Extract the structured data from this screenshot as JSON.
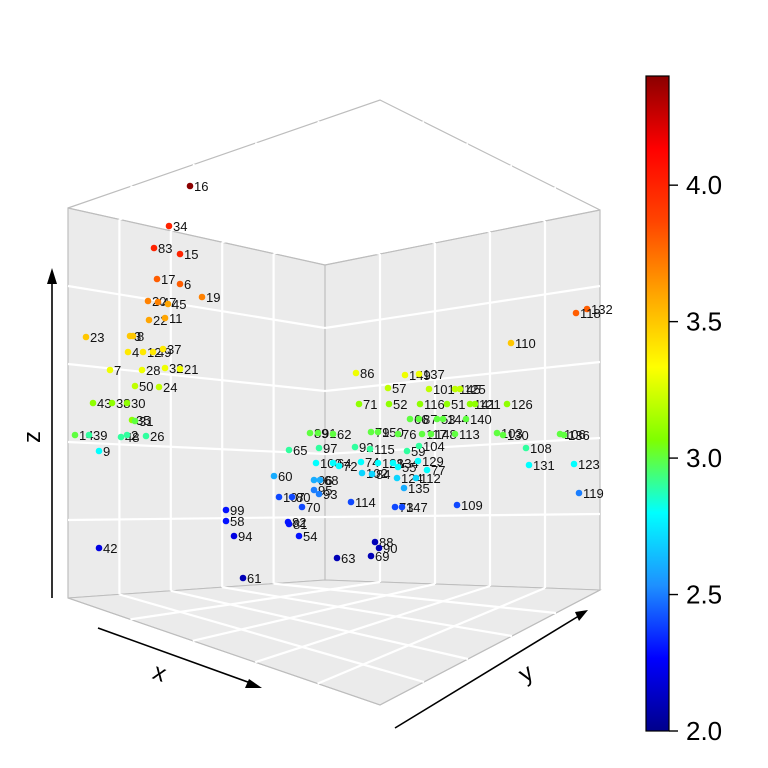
{
  "chart_data": {
    "type": "scatter3d",
    "title": "",
    "axes": {
      "x": "x",
      "y": "y",
      "z": "z"
    },
    "colorbar": {
      "range": [
        2.0,
        4.4
      ],
      "ticks": [
        {
          "value": 2.0,
          "label": "2.0"
        },
        {
          "value": 2.5,
          "label": "2.5"
        },
        {
          "value": 3.0,
          "label": "3.0"
        },
        {
          "value": 3.5,
          "label": "3.5"
        },
        {
          "value": 4.0,
          "label": "4.0"
        }
      ],
      "colors": [
        "#00008b",
        "#0000ff",
        "#1e90ff",
        "#00ffff",
        "#7fff00",
        "#ffff00",
        "#ffa500",
        "#ff4500",
        "#ff0000",
        "#8b0000"
      ]
    },
    "points": [
      {
        "label": "16",
        "value": 4.4
      },
      {
        "label": "34",
        "value": 4.0
      },
      {
        "label": "83",
        "value": 4.0
      },
      {
        "label": "15",
        "value": 4.0
      },
      {
        "label": "17",
        "value": 3.8
      },
      {
        "label": "6",
        "value": 3.8
      },
      {
        "label": "19",
        "value": 3.7
      },
      {
        "label": "20",
        "value": 3.7
      },
      {
        "label": "47",
        "value": 3.7
      },
      {
        "label": "45",
        "value": 3.6
      },
      {
        "label": "22",
        "value": 3.6
      },
      {
        "label": "11",
        "value": 3.6
      },
      {
        "label": "23",
        "value": 3.5
      },
      {
        "label": "3",
        "value": 3.5
      },
      {
        "label": "8",
        "value": 3.5
      },
      {
        "label": "4",
        "value": 3.4
      },
      {
        "label": "12",
        "value": 3.4
      },
      {
        "label": "49",
        "value": 3.4
      },
      {
        "label": "37",
        "value": 3.4
      },
      {
        "label": "7",
        "value": 3.3
      },
      {
        "label": "28",
        "value": 3.3
      },
      {
        "label": "32",
        "value": 3.3
      },
      {
        "label": "21",
        "value": 3.3
      },
      {
        "label": "50",
        "value": 3.2
      },
      {
        "label": "24",
        "value": 3.2
      },
      {
        "label": "43",
        "value": 3.1
      },
      {
        "label": "38",
        "value": 3.1
      },
      {
        "label": "30",
        "value": 3.1
      },
      {
        "label": "35",
        "value": 3.1
      },
      {
        "label": "31",
        "value": 3.0
      },
      {
        "label": "14",
        "value": 3.0
      },
      {
        "label": "39",
        "value": 2.9
      },
      {
        "label": "48",
        "value": 2.9
      },
      {
        "label": "2",
        "value": 2.9
      },
      {
        "label": "26",
        "value": 2.9
      },
      {
        "label": "9",
        "value": 2.8
      },
      {
        "label": "42",
        "value": 2.2
      },
      {
        "label": "61",
        "value": 2.1
      },
      {
        "label": "132",
        "value": 3.8
      },
      {
        "label": "118",
        "value": 3.8
      },
      {
        "label": "110",
        "value": 3.5
      },
      {
        "label": "86",
        "value": 3.3
      },
      {
        "label": "149",
        "value": 3.3
      },
      {
        "label": "137",
        "value": 3.3
      },
      {
        "label": "57",
        "value": 3.2
      },
      {
        "label": "101",
        "value": 3.2
      },
      {
        "label": "145",
        "value": 3.2
      },
      {
        "label": "125",
        "value": 3.2
      },
      {
        "label": "71",
        "value": 3.1
      },
      {
        "label": "52",
        "value": 3.1
      },
      {
        "label": "116",
        "value": 3.1
      },
      {
        "label": "51",
        "value": 3.1
      },
      {
        "label": "141",
        "value": 3.1
      },
      {
        "label": "121",
        "value": 3.1
      },
      {
        "label": "126",
        "value": 3.1
      },
      {
        "label": "66",
        "value": 3.0
      },
      {
        "label": "87",
        "value": 3.0
      },
      {
        "label": "53",
        "value": 3.0
      },
      {
        "label": "144",
        "value": 3.0
      },
      {
        "label": "140",
        "value": 3.0
      },
      {
        "label": "89",
        "value": 3.0
      },
      {
        "label": "91",
        "value": 3.0
      },
      {
        "label": "62",
        "value": 3.0
      },
      {
        "label": "79",
        "value": 3.0
      },
      {
        "label": "150",
        "value": 3.0
      },
      {
        "label": "76",
        "value": 3.0
      },
      {
        "label": "117",
        "value": 3.0
      },
      {
        "label": "148",
        "value": 3.0
      },
      {
        "label": "113",
        "value": 3.0
      },
      {
        "label": "103",
        "value": 3.0
      },
      {
        "label": "130",
        "value": 3.0
      },
      {
        "label": "106",
        "value": 3.0
      },
      {
        "label": "136",
        "value": 3.0
      },
      {
        "label": "65",
        "value": 2.9
      },
      {
        "label": "97",
        "value": 2.9
      },
      {
        "label": "92",
        "value": 2.9
      },
      {
        "label": "115",
        "value": 2.9
      },
      {
        "label": "59",
        "value": 2.9
      },
      {
        "label": "104",
        "value": 2.9
      },
      {
        "label": "108",
        "value": 2.9
      },
      {
        "label": "100",
        "value": 2.8
      },
      {
        "label": "64",
        "value": 2.8
      },
      {
        "label": "72",
        "value": 2.8
      },
      {
        "label": "74",
        "value": 2.8
      },
      {
        "label": "128",
        "value": 2.8
      },
      {
        "label": "134",
        "value": 2.8
      },
      {
        "label": "129",
        "value": 2.8
      },
      {
        "label": "55",
        "value": 2.8
      },
      {
        "label": "77",
        "value": 2.8
      },
      {
        "label": "131",
        "value": 2.8
      },
      {
        "label": "123",
        "value": 2.8
      },
      {
        "label": "102",
        "value": 2.7
      },
      {
        "label": "84",
        "value": 2.7
      },
      {
        "label": "124",
        "value": 2.7
      },
      {
        "label": "112",
        "value": 2.7
      },
      {
        "label": "60",
        "value": 2.6
      },
      {
        "label": "96",
        "value": 2.6
      },
      {
        "label": "68",
        "value": 2.6
      },
      {
        "label": "135",
        "value": 2.6
      },
      {
        "label": "95",
        "value": 2.5
      },
      {
        "label": "93",
        "value": 2.5
      },
      {
        "label": "119",
        "value": 2.5
      },
      {
        "label": "114",
        "value": 2.4
      },
      {
        "label": "109",
        "value": 2.4
      },
      {
        "label": "107",
        "value": 2.4
      },
      {
        "label": "80",
        "value": 2.4
      },
      {
        "label": "70",
        "value": 2.4
      },
      {
        "label": "73",
        "value": 2.4
      },
      {
        "label": "147",
        "value": 2.4
      },
      {
        "label": "99",
        "value": 2.3
      },
      {
        "label": "58",
        "value": 2.3
      },
      {
        "label": "82",
        "value": 2.3
      },
      {
        "label": "81",
        "value": 2.3
      },
      {
        "label": "54",
        "value": 2.3
      },
      {
        "label": "94",
        "value": 2.2
      },
      {
        "label": "63",
        "value": 2.1
      },
      {
        "label": "88",
        "value": 2.1
      },
      {
        "label": "90",
        "value": 2.1
      },
      {
        "label": "69",
        "value": 2.1
      }
    ]
  }
}
